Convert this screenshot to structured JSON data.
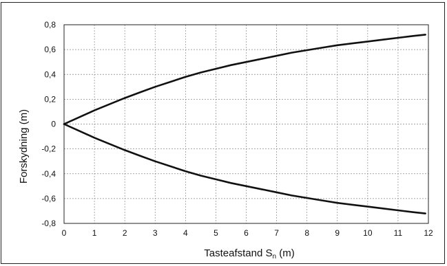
{
  "chart_data": {
    "type": "line",
    "xlabel": "Tasteafstand S",
    "xlabel_sub": "n",
    "xlabel_unit": " (m)",
    "ylabel": "Forskydning (m)",
    "xlim": [
      0,
      12
    ],
    "ylim": [
      -0.8,
      0.8
    ],
    "x_ticks": [
      "0",
      "1",
      "2",
      "3",
      "4",
      "5",
      "6",
      "7",
      "8",
      "9",
      "10",
      "11",
      "12"
    ],
    "y_ticks": [
      "0,8",
      "0,6",
      "0,4",
      "0,2",
      "0",
      "-0,2",
      "-0,4",
      "-0,6",
      "-0,8"
    ],
    "grid": true,
    "line_color": "#111111",
    "x": [
      0,
      0.5,
      1,
      1.5,
      2,
      2.5,
      3,
      3.5,
      4,
      4.5,
      5,
      5.5,
      6,
      6.5,
      7,
      7.5,
      8,
      8.5,
      9,
      9.5,
      10,
      10.5,
      11,
      11.5,
      11.9
    ],
    "series": [
      {
        "values": [
          0,
          0.055,
          0.11,
          0.16,
          0.21,
          0.255,
          0.3,
          0.34,
          0.38,
          0.415,
          0.445,
          0.475,
          0.5,
          0.525,
          0.55,
          0.575,
          0.595,
          0.615,
          0.635,
          0.65,
          0.665,
          0.68,
          0.695,
          0.71,
          0.72
        ]
      },
      {
        "values": [
          0,
          -0.055,
          -0.11,
          -0.16,
          -0.21,
          -0.255,
          -0.3,
          -0.34,
          -0.38,
          -0.415,
          -0.445,
          -0.475,
          -0.5,
          -0.525,
          -0.55,
          -0.575,
          -0.595,
          -0.615,
          -0.635,
          -0.65,
          -0.665,
          -0.68,
          -0.695,
          -0.71,
          -0.72
        ]
      }
    ]
  }
}
